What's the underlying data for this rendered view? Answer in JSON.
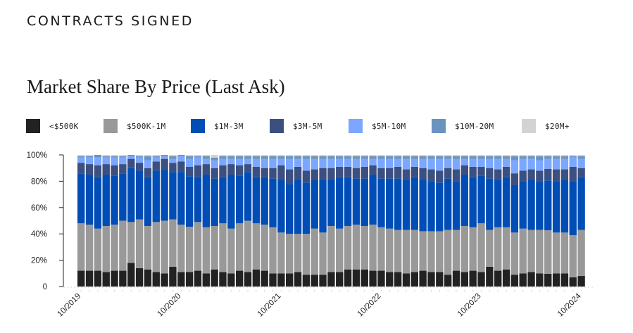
{
  "header": {
    "section_title": "CONTRACTS SIGNED"
  },
  "chart_data": {
    "type": "bar",
    "stacked": true,
    "normalized": true,
    "title": "Market Share By Price (Last Ask)",
    "xlabel": "",
    "ylabel": "",
    "ylim": [
      0,
      100
    ],
    "y_ticks": [
      "0",
      "20%",
      "40%",
      "60%",
      "80%",
      "100%"
    ],
    "x_tick_labels": [
      "10/2019",
      "10/2020",
      "10/2021",
      "10/2022",
      "10/2023",
      "10/2024"
    ],
    "legend_position": "top",
    "grid": false,
    "series": [
      {
        "name": "<$500K",
        "color": "#222222",
        "values": [
          12,
          12,
          12,
          11,
          12,
          12,
          18,
          14,
          13,
          11,
          10,
          15,
          11,
          11,
          12,
          10,
          13,
          11,
          10,
          12,
          11,
          13,
          12,
          10,
          10,
          10,
          11,
          9,
          9,
          9,
          11,
          11,
          13,
          13,
          13,
          12,
          12,
          11,
          11,
          10,
          11,
          12,
          11,
          11,
          9,
          12,
          11,
          12,
          11,
          15,
          12,
          13,
          9,
          10,
          11,
          10,
          10,
          10,
          10,
          7,
          8
        ]
      },
      {
        "name": "$500K-1M",
        "color": "#999999",
        "values": [
          36,
          35,
          32,
          35,
          35,
          38,
          31,
          37,
          33,
          38,
          40,
          36,
          36,
          34,
          37,
          35,
          33,
          37,
          34,
          36,
          39,
          35,
          35,
          35,
          31,
          30,
          29,
          31,
          35,
          32,
          35,
          33,
          33,
          34,
          33,
          35,
          33,
          33,
          32,
          33,
          32,
          30,
          31,
          31,
          34,
          31,
          35,
          33,
          37,
          28,
          33,
          32,
          32,
          34,
          32,
          33,
          34,
          31,
          31,
          32,
          35
        ]
      },
      {
        "name": "$1M-3M",
        "color": "#004DB6",
        "values": [
          38,
          38,
          39,
          39,
          37,
          36,
          41,
          37,
          37,
          39,
          39,
          36,
          40,
          38,
          34,
          40,
          36,
          35,
          41,
          36,
          37,
          35,
          36,
          37,
          40,
          38,
          41,
          39,
          37,
          40,
          35,
          39,
          37,
          35,
          36,
          38,
          37,
          38,
          39,
          38,
          40,
          39,
          38,
          37,
          39,
          37,
          39,
          38,
          36,
          39,
          36,
          38,
          36,
          36,
          38,
          37,
          39,
          39,
          40,
          41,
          40
        ]
      },
      {
        "name": "$3M-5M",
        "color": "#3B5080",
        "values": [
          8,
          8,
          9,
          8,
          8,
          7,
          7,
          6,
          7,
          7,
          8,
          7,
          8,
          7,
          9,
          8,
          8,
          9,
          8,
          8,
          6,
          8,
          7,
          8,
          11,
          11,
          10,
          9,
          8,
          9,
          9,
          8,
          8,
          8,
          9,
          7,
          8,
          8,
          9,
          8,
          8,
          9,
          9,
          9,
          8,
          9,
          7,
          8,
          7,
          8,
          8,
          8,
          9,
          8,
          8,
          8,
          9,
          9,
          8,
          11,
          7
        ]
      },
      {
        "name": "$5M-10M",
        "color": "#7BA7FF",
        "values": [
          4,
          5,
          6,
          5,
          6,
          5,
          2,
          4,
          6,
          3,
          2,
          3,
          4,
          6,
          6,
          4,
          6,
          5,
          4,
          5,
          4,
          6,
          7,
          7,
          5,
          8,
          6,
          9,
          8,
          7,
          7,
          6,
          6,
          7,
          6,
          5,
          7,
          7,
          6,
          8,
          6,
          7,
          8,
          9,
          7,
          8,
          5,
          6,
          6,
          7,
          8,
          6,
          10,
          9,
          8,
          8,
          8,
          8,
          8,
          7,
          7
        ]
      },
      {
        "name": "$10M-20M",
        "color": "#6A94C0",
        "values": [
          1,
          1,
          2,
          1,
          1,
          1,
          1,
          1,
          3,
          1,
          1,
          2,
          1,
          2,
          1,
          2,
          2,
          2,
          2,
          2,
          2,
          2,
          2,
          2,
          2,
          2,
          2,
          2,
          2,
          2,
          2,
          2,
          2,
          2,
          2,
          2,
          2,
          2,
          2,
          2,
          2,
          2,
          2,
          2,
          2,
          2,
          2,
          2,
          2,
          2,
          2,
          2,
          3,
          2,
          2,
          3,
          2,
          2,
          2,
          1,
          2
        ]
      },
      {
        "name": "$20M+",
        "color": "#D3D3D3",
        "values": [
          1,
          1,
          0,
          1,
          1,
          1,
          0,
          1,
          1,
          1,
          0,
          1,
          0,
          1,
          1,
          1,
          2,
          1,
          1,
          1,
          1,
          1,
          1,
          1,
          1,
          1,
          1,
          1,
          1,
          1,
          1,
          1,
          1,
          1,
          1,
          1,
          1,
          1,
          1,
          1,
          1,
          1,
          1,
          1,
          1,
          1,
          1,
          1,
          1,
          1,
          1,
          1,
          1,
          1,
          1,
          1,
          1,
          1,
          1,
          1,
          1
        ]
      }
    ],
    "categories_count": 61
  }
}
